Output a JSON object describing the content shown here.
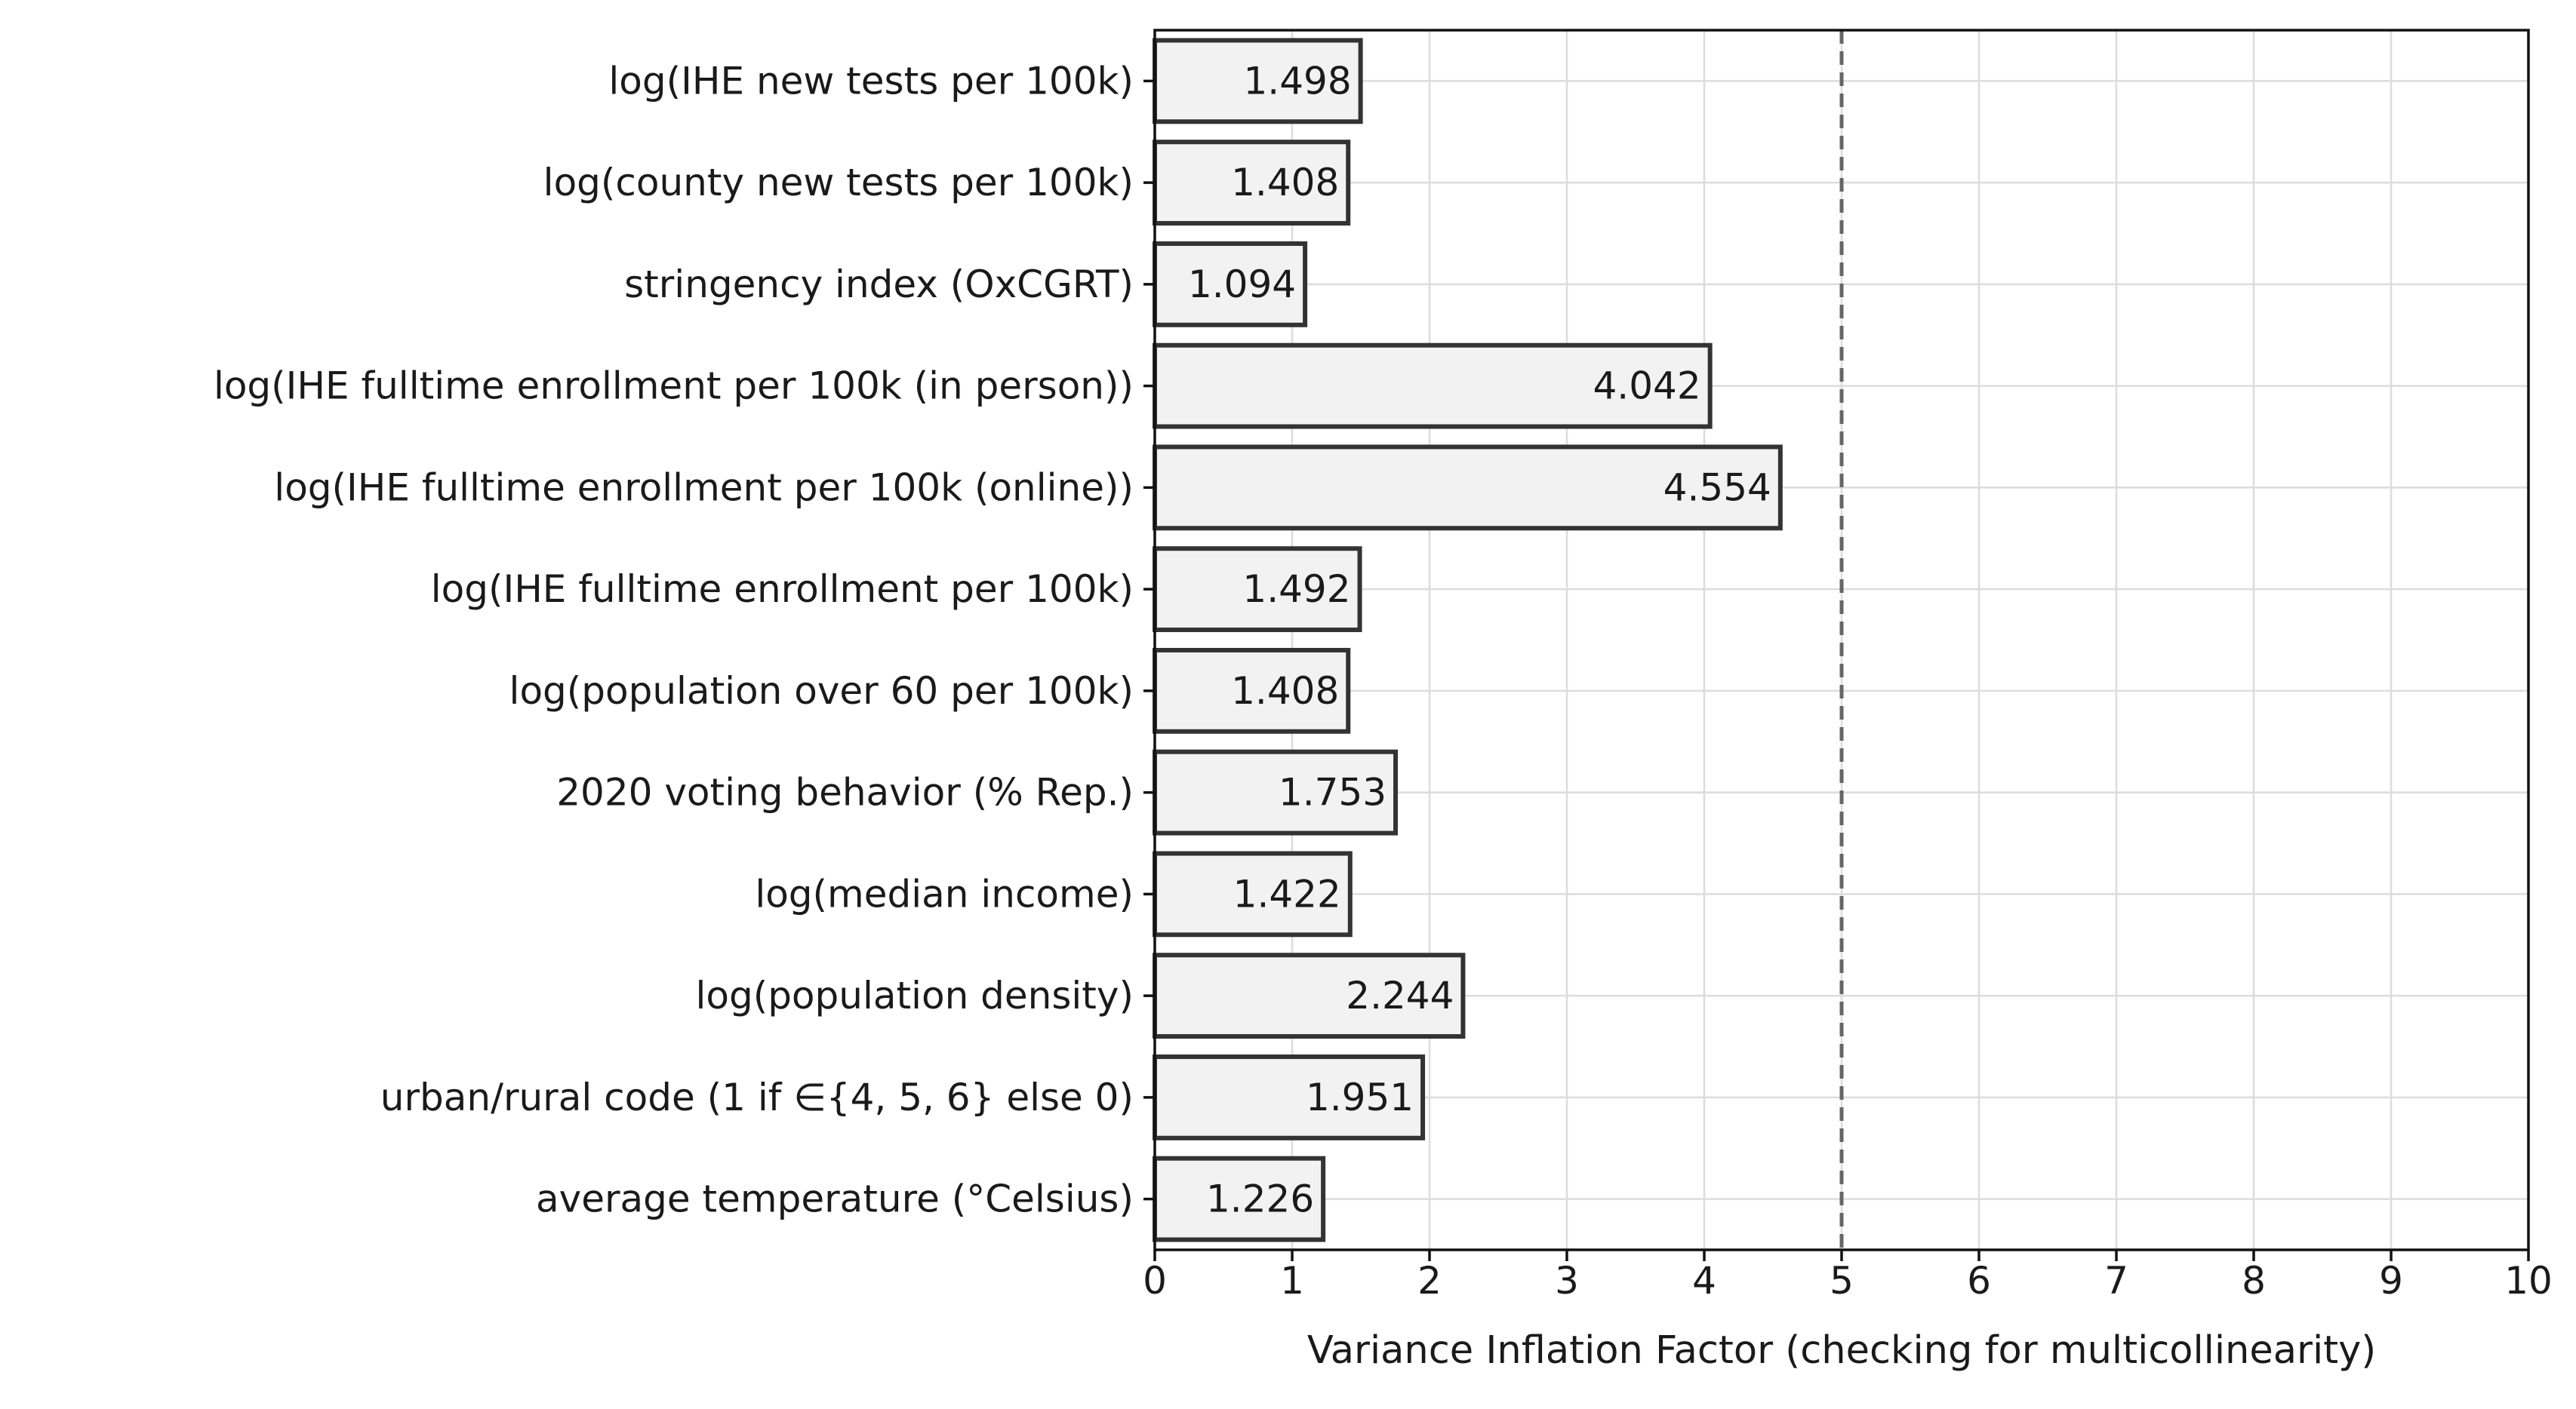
{
  "chart_data": {
    "type": "bar",
    "orientation": "horizontal",
    "title": "",
    "xlabel": "Variance Inflation Factor (checking for multicollinearity)",
    "ylabel": "",
    "xlim": [
      0,
      10
    ],
    "xticks": [
      "0",
      "1",
      "2",
      "3",
      "4",
      "5",
      "6",
      "7",
      "8",
      "9",
      "10"
    ],
    "grid": true,
    "reference_line": {
      "x": 5,
      "style": "dashed",
      "color": "#666666"
    },
    "bar_fill": "#f2f2f2",
    "bar_edge": "#333333",
    "categories": [
      "log(IHE new tests per 100k)",
      "log(county new tests per 100k)",
      "stringency index (OxCGRT)",
      "log(IHE fulltime enrollment per 100k (in person))",
      "log(IHE fulltime enrollment per 100k (online))",
      "log(IHE fulltime enrollment per 100k)",
      "log(population over 60 per 100k)",
      "2020 voting behavior (% Rep.)",
      "log(median income)",
      "log(population density)",
      "urban/rural code (1 if ∈{4, 5, 6} else 0)",
      "average temperature (°Celsius)"
    ],
    "values": [
      1.498,
      1.408,
      1.094,
      4.042,
      4.554,
      1.492,
      1.408,
      1.753,
      1.422,
      2.244,
      1.951,
      1.226
    ],
    "value_labels": [
      "1.498",
      "1.408",
      "1.094",
      "4.042",
      "4.554",
      "1.492",
      "1.408",
      "1.753",
      "1.422",
      "2.244",
      "1.951",
      "1.226"
    ]
  }
}
